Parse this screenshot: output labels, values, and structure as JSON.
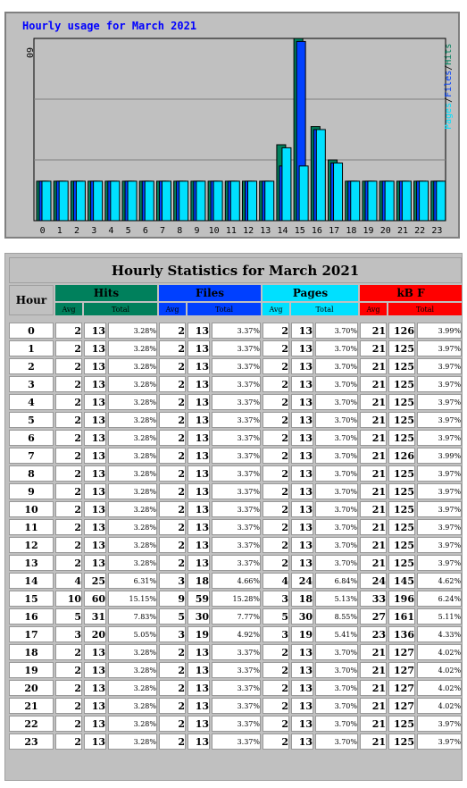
{
  "chart": {
    "title": "Hourly usage for March 2021",
    "ymax_label": "60",
    "legend": [
      "Pages",
      "Files",
      "Hits"
    ],
    "colors": {
      "hits": "#00805c",
      "files": "#0040ff",
      "pages": "#00e0ff",
      "kbf": "#ff0000",
      "title": "#0000ff",
      "bg": "#c0c0c0"
    }
  },
  "chart_data": {
    "type": "bar",
    "title": "Hourly usage for March 2021",
    "categories": [
      "0",
      "1",
      "2",
      "3",
      "4",
      "5",
      "6",
      "7",
      "8",
      "9",
      "10",
      "11",
      "12",
      "13",
      "14",
      "15",
      "16",
      "17",
      "18",
      "19",
      "20",
      "21",
      "22",
      "23"
    ],
    "ylim": [
      0,
      60
    ],
    "series": [
      {
        "name": "Hits",
        "values": [
          13,
          13,
          13,
          13,
          13,
          13,
          13,
          13,
          13,
          13,
          13,
          13,
          13,
          13,
          25,
          60,
          31,
          20,
          13,
          13,
          13,
          13,
          13,
          13
        ]
      },
      {
        "name": "Files",
        "values": [
          13,
          13,
          13,
          13,
          13,
          13,
          13,
          13,
          13,
          13,
          13,
          13,
          13,
          13,
          18,
          59,
          30,
          19,
          13,
          13,
          13,
          13,
          13,
          13
        ]
      },
      {
        "name": "Pages",
        "values": [
          13,
          13,
          13,
          13,
          13,
          13,
          13,
          13,
          13,
          13,
          13,
          13,
          13,
          13,
          24,
          18,
          30,
          19,
          13,
          13,
          13,
          13,
          13,
          13
        ]
      }
    ]
  },
  "table": {
    "title": "Hourly Statistics for March 2021",
    "hour_label": "Hour",
    "groups": [
      "Hits",
      "Files",
      "Pages",
      "kB F"
    ],
    "avg_label": "Avg",
    "total_label": "Total",
    "rows": [
      {
        "hour": "0",
        "hits_avg": "2",
        "hits_total": "13",
        "hits_pct": "3.28%",
        "files_avg": "2",
        "files_total": "13",
        "files_pct": "3.37%",
        "pages_avg": "2",
        "pages_total": "13",
        "pages_pct": "3.70%",
        "kb_avg": "21",
        "kb_total": "126",
        "kb_pct": "3.99%"
      },
      {
        "hour": "1",
        "hits_avg": "2",
        "hits_total": "13",
        "hits_pct": "3.28%",
        "files_avg": "2",
        "files_total": "13",
        "files_pct": "3.37%",
        "pages_avg": "2",
        "pages_total": "13",
        "pages_pct": "3.70%",
        "kb_avg": "21",
        "kb_total": "125",
        "kb_pct": "3.97%"
      },
      {
        "hour": "2",
        "hits_avg": "2",
        "hits_total": "13",
        "hits_pct": "3.28%",
        "files_avg": "2",
        "files_total": "13",
        "files_pct": "3.37%",
        "pages_avg": "2",
        "pages_total": "13",
        "pages_pct": "3.70%",
        "kb_avg": "21",
        "kb_total": "125",
        "kb_pct": "3.97%"
      },
      {
        "hour": "3",
        "hits_avg": "2",
        "hits_total": "13",
        "hits_pct": "3.28%",
        "files_avg": "2",
        "files_total": "13",
        "files_pct": "3.37%",
        "pages_avg": "2",
        "pages_total": "13",
        "pages_pct": "3.70%",
        "kb_avg": "21",
        "kb_total": "125",
        "kb_pct": "3.97%"
      },
      {
        "hour": "4",
        "hits_avg": "2",
        "hits_total": "13",
        "hits_pct": "3.28%",
        "files_avg": "2",
        "files_total": "13",
        "files_pct": "3.37%",
        "pages_avg": "2",
        "pages_total": "13",
        "pages_pct": "3.70%",
        "kb_avg": "21",
        "kb_total": "125",
        "kb_pct": "3.97%"
      },
      {
        "hour": "5",
        "hits_avg": "2",
        "hits_total": "13",
        "hits_pct": "3.28%",
        "files_avg": "2",
        "files_total": "13",
        "files_pct": "3.37%",
        "pages_avg": "2",
        "pages_total": "13",
        "pages_pct": "3.70%",
        "kb_avg": "21",
        "kb_total": "125",
        "kb_pct": "3.97%"
      },
      {
        "hour": "6",
        "hits_avg": "2",
        "hits_total": "13",
        "hits_pct": "3.28%",
        "files_avg": "2",
        "files_total": "13",
        "files_pct": "3.37%",
        "pages_avg": "2",
        "pages_total": "13",
        "pages_pct": "3.70%",
        "kb_avg": "21",
        "kb_total": "125",
        "kb_pct": "3.97%"
      },
      {
        "hour": "7",
        "hits_avg": "2",
        "hits_total": "13",
        "hits_pct": "3.28%",
        "files_avg": "2",
        "files_total": "13",
        "files_pct": "3.37%",
        "pages_avg": "2",
        "pages_total": "13",
        "pages_pct": "3.70%",
        "kb_avg": "21",
        "kb_total": "126",
        "kb_pct": "3.99%"
      },
      {
        "hour": "8",
        "hits_avg": "2",
        "hits_total": "13",
        "hits_pct": "3.28%",
        "files_avg": "2",
        "files_total": "13",
        "files_pct": "3.37%",
        "pages_avg": "2",
        "pages_total": "13",
        "pages_pct": "3.70%",
        "kb_avg": "21",
        "kb_total": "125",
        "kb_pct": "3.97%"
      },
      {
        "hour": "9",
        "hits_avg": "2",
        "hits_total": "13",
        "hits_pct": "3.28%",
        "files_avg": "2",
        "files_total": "13",
        "files_pct": "3.37%",
        "pages_avg": "2",
        "pages_total": "13",
        "pages_pct": "3.70%",
        "kb_avg": "21",
        "kb_total": "125",
        "kb_pct": "3.97%"
      },
      {
        "hour": "10",
        "hits_avg": "2",
        "hits_total": "13",
        "hits_pct": "3.28%",
        "files_avg": "2",
        "files_total": "13",
        "files_pct": "3.37%",
        "pages_avg": "2",
        "pages_total": "13",
        "pages_pct": "3.70%",
        "kb_avg": "21",
        "kb_total": "125",
        "kb_pct": "3.97%"
      },
      {
        "hour": "11",
        "hits_avg": "2",
        "hits_total": "13",
        "hits_pct": "3.28%",
        "files_avg": "2",
        "files_total": "13",
        "files_pct": "3.37%",
        "pages_avg": "2",
        "pages_total": "13",
        "pages_pct": "3.70%",
        "kb_avg": "21",
        "kb_total": "125",
        "kb_pct": "3.97%"
      },
      {
        "hour": "12",
        "hits_avg": "2",
        "hits_total": "13",
        "hits_pct": "3.28%",
        "files_avg": "2",
        "files_total": "13",
        "files_pct": "3.37%",
        "pages_avg": "2",
        "pages_total": "13",
        "pages_pct": "3.70%",
        "kb_avg": "21",
        "kb_total": "125",
        "kb_pct": "3.97%"
      },
      {
        "hour": "13",
        "hits_avg": "2",
        "hits_total": "13",
        "hits_pct": "3.28%",
        "files_avg": "2",
        "files_total": "13",
        "files_pct": "3.37%",
        "pages_avg": "2",
        "pages_total": "13",
        "pages_pct": "3.70%",
        "kb_avg": "21",
        "kb_total": "125",
        "kb_pct": "3.97%"
      },
      {
        "hour": "14",
        "hits_avg": "4",
        "hits_total": "25",
        "hits_pct": "6.31%",
        "files_avg": "3",
        "files_total": "18",
        "files_pct": "4.66%",
        "pages_avg": "4",
        "pages_total": "24",
        "pages_pct": "6.84%",
        "kb_avg": "24",
        "kb_total": "145",
        "kb_pct": "4.62%"
      },
      {
        "hour": "15",
        "hits_avg": "10",
        "hits_total": "60",
        "hits_pct": "15.15%",
        "files_avg": "9",
        "files_total": "59",
        "files_pct": "15.28%",
        "pages_avg": "3",
        "pages_total": "18",
        "pages_pct": "5.13%",
        "kb_avg": "33",
        "kb_total": "196",
        "kb_pct": "6.24%"
      },
      {
        "hour": "16",
        "hits_avg": "5",
        "hits_total": "31",
        "hits_pct": "7.83%",
        "files_avg": "5",
        "files_total": "30",
        "files_pct": "7.77%",
        "pages_avg": "5",
        "pages_total": "30",
        "pages_pct": "8.55%",
        "kb_avg": "27",
        "kb_total": "161",
        "kb_pct": "5.11%"
      },
      {
        "hour": "17",
        "hits_avg": "3",
        "hits_total": "20",
        "hits_pct": "5.05%",
        "files_avg": "3",
        "files_total": "19",
        "files_pct": "4.92%",
        "pages_avg": "3",
        "pages_total": "19",
        "pages_pct": "5.41%",
        "kb_avg": "23",
        "kb_total": "136",
        "kb_pct": "4.33%"
      },
      {
        "hour": "18",
        "hits_avg": "2",
        "hits_total": "13",
        "hits_pct": "3.28%",
        "files_avg": "2",
        "files_total": "13",
        "files_pct": "3.37%",
        "pages_avg": "2",
        "pages_total": "13",
        "pages_pct": "3.70%",
        "kb_avg": "21",
        "kb_total": "127",
        "kb_pct": "4.02%"
      },
      {
        "hour": "19",
        "hits_avg": "2",
        "hits_total": "13",
        "hits_pct": "3.28%",
        "files_avg": "2",
        "files_total": "13",
        "files_pct": "3.37%",
        "pages_avg": "2",
        "pages_total": "13",
        "pages_pct": "3.70%",
        "kb_avg": "21",
        "kb_total": "127",
        "kb_pct": "4.02%"
      },
      {
        "hour": "20",
        "hits_avg": "2",
        "hits_total": "13",
        "hits_pct": "3.28%",
        "files_avg": "2",
        "files_total": "13",
        "files_pct": "3.37%",
        "pages_avg": "2",
        "pages_total": "13",
        "pages_pct": "3.70%",
        "kb_avg": "21",
        "kb_total": "127",
        "kb_pct": "4.02%"
      },
      {
        "hour": "21",
        "hits_avg": "2",
        "hits_total": "13",
        "hits_pct": "3.28%",
        "files_avg": "2",
        "files_total": "13",
        "files_pct": "3.37%",
        "pages_avg": "2",
        "pages_total": "13",
        "pages_pct": "3.70%",
        "kb_avg": "21",
        "kb_total": "127",
        "kb_pct": "4.02%"
      },
      {
        "hour": "22",
        "hits_avg": "2",
        "hits_total": "13",
        "hits_pct": "3.28%",
        "files_avg": "2",
        "files_total": "13",
        "files_pct": "3.37%",
        "pages_avg": "2",
        "pages_total": "13",
        "pages_pct": "3.70%",
        "kb_avg": "21",
        "kb_total": "125",
        "kb_pct": "3.97%"
      },
      {
        "hour": "23",
        "hits_avg": "2",
        "hits_total": "13",
        "hits_pct": "3.28%",
        "files_avg": "2",
        "files_total": "13",
        "files_pct": "3.37%",
        "pages_avg": "2",
        "pages_total": "13",
        "pages_pct": "3.70%",
        "kb_avg": "21",
        "kb_total": "125",
        "kb_pct": "3.97%"
      }
    ]
  }
}
